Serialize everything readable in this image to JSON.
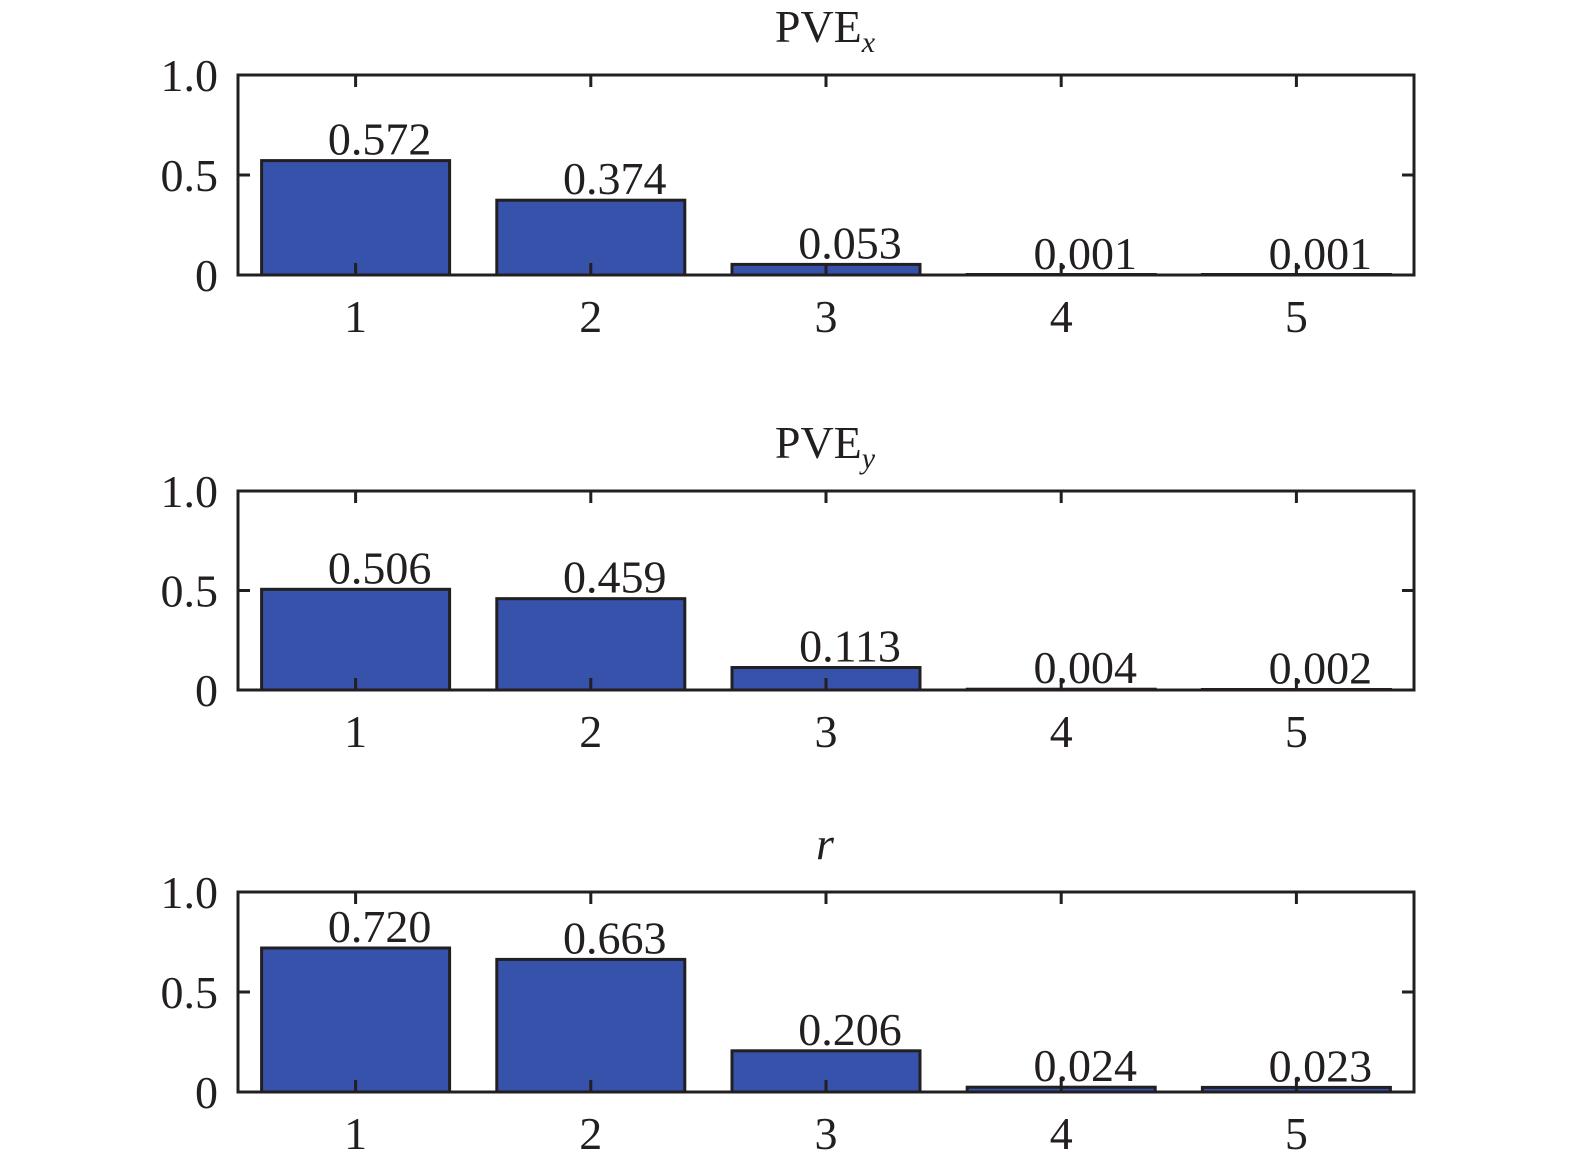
{
  "chart_data": [
    {
      "type": "bar",
      "title": "PVE",
      "title_subscript": "x",
      "categories": [
        "1",
        "2",
        "3",
        "4",
        "5"
      ],
      "values": [
        0.572,
        0.374,
        0.053,
        0.001,
        0.001
      ],
      "data_labels": [
        "0.572",
        "0.374",
        "0.053",
        "0.001",
        "0.001"
      ],
      "ylim": [
        0,
        1.0
      ],
      "yticks": [
        "0",
        "0.5",
        "1.0"
      ],
      "grid": false,
      "bar_color": "#3652ab"
    },
    {
      "type": "bar",
      "title": "PVE",
      "title_subscript": "y",
      "categories": [
        "1",
        "2",
        "3",
        "4",
        "5"
      ],
      "values": [
        0.506,
        0.459,
        0.113,
        0.004,
        0.002
      ],
      "data_labels": [
        "0.506",
        "0.459",
        "0.113",
        "0.004",
        "0.002"
      ],
      "ylim": [
        0,
        1.0
      ],
      "yticks": [
        "0",
        "0.5",
        "1.0"
      ],
      "grid": false,
      "bar_color": "#3652ab"
    },
    {
      "type": "bar",
      "title": "r",
      "title_italic": true,
      "categories": [
        "1",
        "2",
        "3",
        "4",
        "5"
      ],
      "values": [
        0.72,
        0.663,
        0.206,
        0.024,
        0.023
      ],
      "data_labels": [
        "0.720",
        "0.663",
        "0.206",
        "0.024",
        "0.023"
      ],
      "ylim": [
        0,
        1.0
      ],
      "yticks": [
        "0",
        "0.5",
        "1.0"
      ],
      "grid": false,
      "bar_color": "#3652ab"
    }
  ]
}
